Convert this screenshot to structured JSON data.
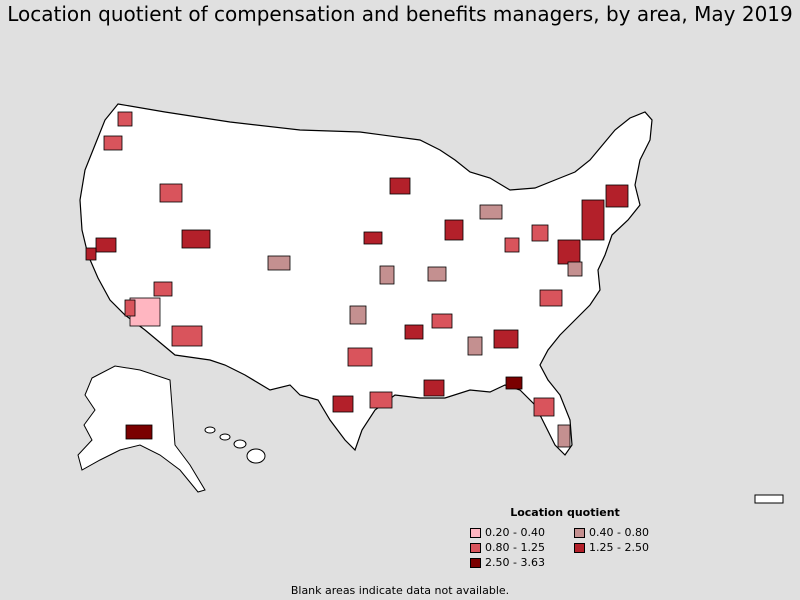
{
  "title": "Location quotient of compensation and benefits managers, by area, May 2019",
  "legend": {
    "title": "Location quotient",
    "items": [
      {
        "label": "0.20 - 0.40",
        "color": "#ffb6c1"
      },
      {
        "label": "0.40 - 0.80",
        "color": "#c49090"
      },
      {
        "label": "0.80 - 1.25",
        "color": "#d9545c"
      },
      {
        "label": "1.25 - 2.50",
        "color": "#b3202a"
      },
      {
        "label": "2.50 - 3.63",
        "color": "#7a0000"
      }
    ]
  },
  "footnote": "Blank areas indicate data not available.",
  "colors": {
    "background": "#e0e0e0",
    "land": "#ffffff",
    "border": "#000000"
  }
}
